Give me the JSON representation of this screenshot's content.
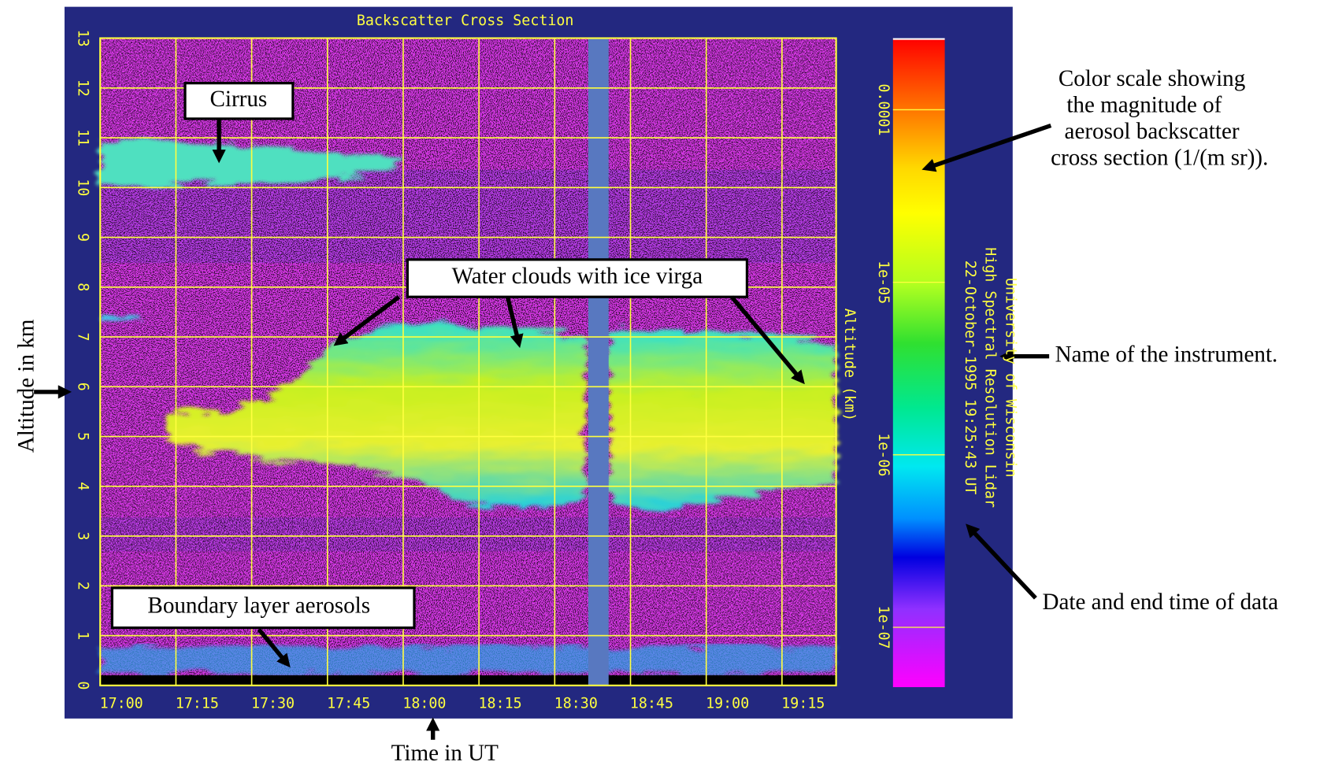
{
  "chart_data": {
    "type": "heatmap",
    "title": "Backscatter Cross Section",
    "y_label": "Altitude (km)",
    "ylim": [
      0,
      13
    ],
    "yticks": [
      0,
      1,
      2,
      3,
      4,
      5,
      6,
      7,
      8,
      9,
      10,
      11,
      12,
      13
    ],
    "xlim": [
      "17:00",
      "19:25:43"
    ],
    "xticks": [
      "17:00",
      "17:15",
      "17:30",
      "17:45",
      "18:00",
      "18:15",
      "18:30",
      "18:45",
      "19:00",
      "19:15"
    ],
    "grid": true,
    "colorbar": {
      "scale": "log",
      "lim": [
        4.5e-08,
        0.00026
      ],
      "ticks": [
        0.0001,
        {
          "value": 1e-05,
          "label": "1e-05"
        },
        {
          "value": 1e-06,
          "label": "1e-06"
        },
        {
          "value": 1e-07,
          "label": "1e-07"
        }
      ]
    },
    "instrument": [
      "University of Wisconsin",
      "High Spectral Resolution Lidar",
      "22-October-1995 19:25:43 UT"
    ]
  },
  "annotations": {
    "cirrus": "Cirrus",
    "water_clouds": "Water clouds with ice virga",
    "boundary_layer": "Boundary layer aerosols",
    "color_scale": [
      "Color scale showing",
      "the magnitude of",
      "aerosol backscatter",
      "cross section (1/(m sr))."
    ],
    "instrument_name": "Name of the instrument.",
    "date_time": "Date and end time of data",
    "altitude": "Altitude in km",
    "time": "Time in UT"
  }
}
